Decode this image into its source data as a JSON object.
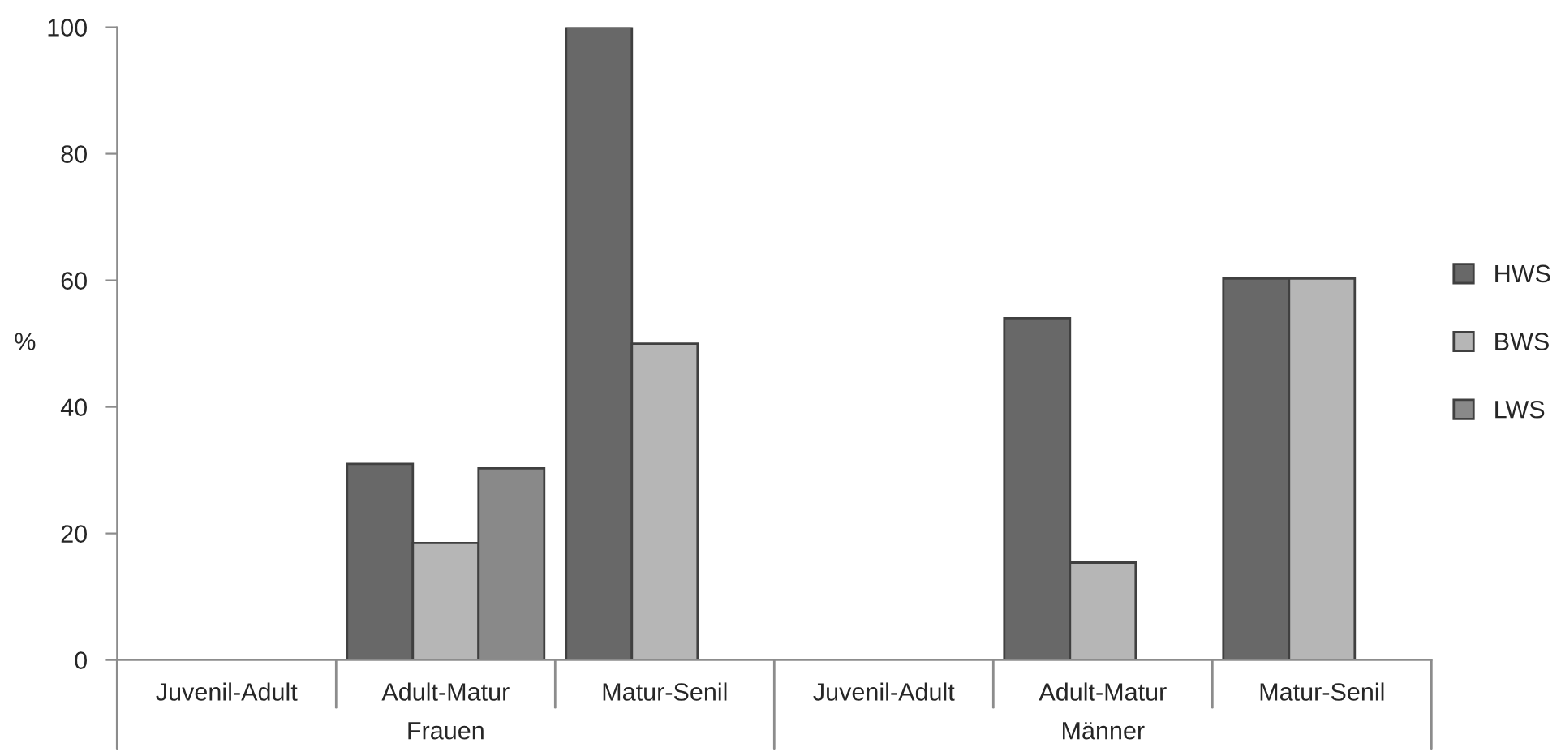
{
  "chart_data": {
    "type": "bar",
    "ylabel": "%",
    "categories": [
      "Juvenil-Adult",
      "Adult-Matur",
      "Matur-Senil",
      "Juvenil-Adult",
      "Adult-Matur",
      "Matur-Senil"
    ],
    "series": [
      {
        "name": "HWS",
        "color": "#686868",
        "values": [
          null,
          31,
          100,
          null,
          54,
          60.3
        ]
      },
      {
        "name": "BWS",
        "color": "#b6b6b6",
        "values": [
          null,
          18.5,
          50,
          null,
          15.4,
          60.3
        ]
      },
      {
        "name": "LWS",
        "color": "#898989",
        "values": [
          null,
          30.3,
          null,
          null,
          null,
          null
        ]
      }
    ],
    "ylim": [
      0,
      100
    ],
    "yticks": [
      0,
      20,
      40,
      60,
      80,
      100
    ],
    "grid": false,
    "legend": "right",
    "annotations": [
      "Frauen",
      "Männer"
    ]
  }
}
